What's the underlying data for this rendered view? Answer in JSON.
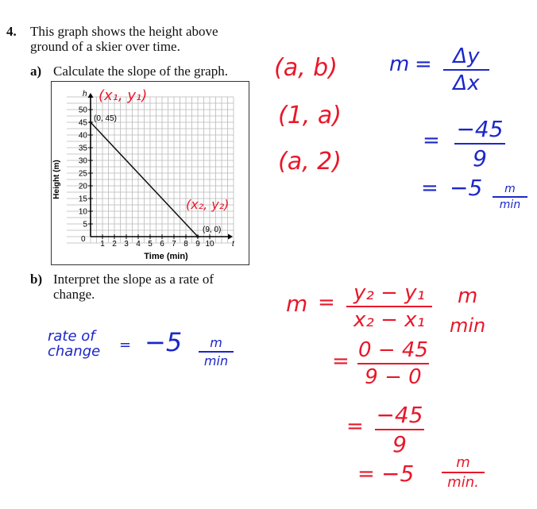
{
  "question": {
    "number": "4.",
    "text": "This graph shows the height above ground of a skier over time.",
    "part_a": {
      "label": "a)",
      "text": "Calculate the slope of the graph."
    },
    "part_b": {
      "label": "b)",
      "text": "Interpret the slope as a rate of change."
    }
  },
  "chart_data": {
    "type": "line",
    "xlabel": "Time (min)",
    "ylabel": "Height (m)",
    "x_axis_letter": "t",
    "y_axis_letter": "h",
    "xlim": [
      0,
      10
    ],
    "ylim": [
      0,
      50
    ],
    "x_ticks": [
      "1",
      "2",
      "3",
      "4",
      "5",
      "6",
      "7",
      "8",
      "9",
      "10"
    ],
    "y_ticks": [
      "5",
      "10",
      "15",
      "20",
      "25",
      "30",
      "35",
      "40",
      "45",
      "50"
    ],
    "origin_label": "0",
    "grid": true,
    "series": [
      {
        "x": [
          0,
          9
        ],
        "y": [
          45,
          0
        ]
      }
    ],
    "point_labels": [
      "(0, 45)",
      "(9, 0)"
    ]
  },
  "handwriting": {
    "colors": {
      "red": "#e8182a",
      "blue": "#1c27c9"
    },
    "graph_labels": {
      "p1": "(x₁, y₁)",
      "p2": "(x₂, y₂)"
    },
    "coords": [
      "(a, b)",
      "(1, a)",
      "(a, 2)"
    ],
    "slope_top": {
      "m": "m",
      "eq": "=",
      "num1": "Δy",
      "den1": "Δx",
      "num2": "−45",
      "den2": "9",
      "res": "−5",
      "unit_num": "m",
      "unit_den": "min"
    },
    "rate": {
      "label_1": "rate of",
      "label_2": "change",
      "eq": "=",
      "value": "−5",
      "unit_num": "m",
      "unit_den": "min"
    },
    "slope_bottom": {
      "m": "m",
      "eq": "=",
      "num1": "y₂ − y₁",
      "den1": "x₂ − x₁",
      "unit_1": "m",
      "unit_2": "min",
      "num2": "0 − 45",
      "den2": "9 − 0",
      "num3": "−45",
      "den3": "9",
      "res": "−5",
      "unit_num": "m",
      "unit_den": "min."
    }
  }
}
